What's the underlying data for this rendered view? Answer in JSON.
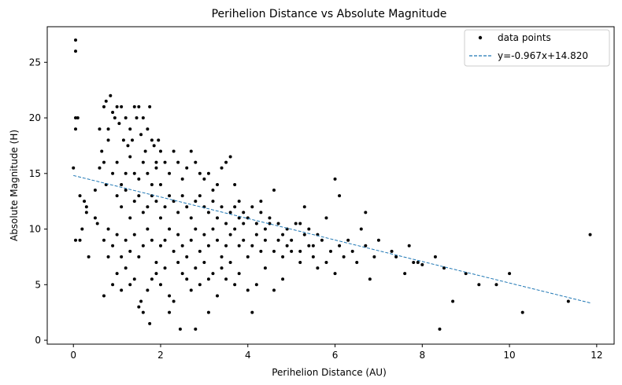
{
  "chart_data": {
    "type": "scatter",
    "title": "Perihelion Distance vs Absolute Magnitude",
    "xlabel": "Perihelion Distance (AU)",
    "ylabel": "Absolute Magnitude (H)",
    "xlim": [
      -0.6,
      12.4
    ],
    "ylim": [
      -0.35,
      28.2
    ],
    "xticks": [
      0,
      2,
      4,
      6,
      8,
      10,
      12
    ],
    "yticks": [
      0,
      5,
      10,
      15,
      20,
      25
    ],
    "grid": false,
    "legend_position": "top-right",
    "colors": {
      "points": "#000000",
      "fit": "#1f77b4",
      "axes": "#000000",
      "legend_border": "#cccccc"
    },
    "series": [
      {
        "name": "data points",
        "kind": "scatter",
        "points": [
          [
            0.05,
            27
          ],
          [
            0.05,
            26
          ],
          [
            0.05,
            20
          ],
          [
            0.1,
            20
          ],
          [
            0.05,
            19
          ],
          [
            0.0,
            15.5
          ],
          [
            0.15,
            13
          ],
          [
            0.3,
            12
          ],
          [
            0.3,
            11.5
          ],
          [
            0.25,
            12.5
          ],
          [
            0.05,
            9
          ],
          [
            0.15,
            9
          ],
          [
            0.2,
            10
          ],
          [
            0.35,
            7.5
          ],
          [
            0.5,
            13.5
          ],
          [
            0.5,
            11
          ],
          [
            0.55,
            10.5
          ],
          [
            0.6,
            19
          ],
          [
            0.65,
            17
          ],
          [
            0.6,
            15.5
          ],
          [
            0.7,
            16
          ],
          [
            0.75,
            14
          ],
          [
            0.7,
            21
          ],
          [
            0.75,
            21.5
          ],
          [
            0.8,
            19
          ],
          [
            0.8,
            18
          ],
          [
            0.85,
            22
          ],
          [
            0.9,
            20.5
          ],
          [
            0.95,
            20
          ],
          [
            1.0,
            21
          ],
          [
            1.05,
            19.5
          ],
          [
            1.1,
            21
          ],
          [
            1.15,
            18
          ],
          [
            1.2,
            20
          ],
          [
            1.25,
            17.5
          ],
          [
            1.3,
            19
          ],
          [
            1.35,
            18
          ],
          [
            1.4,
            21
          ],
          [
            1.45,
            20
          ],
          [
            1.5,
            21
          ],
          [
            1.55,
            18.5
          ],
          [
            1.6,
            20
          ],
          [
            1.65,
            17
          ],
          [
            1.7,
            19
          ],
          [
            1.75,
            21
          ],
          [
            1.8,
            18
          ],
          [
            1.85,
            17.5
          ],
          [
            1.9,
            16
          ],
          [
            1.95,
            18
          ],
          [
            2.0,
            17
          ],
          [
            0.9,
            15
          ],
          [
            1.0,
            16
          ],
          [
            1.1,
            14
          ],
          [
            1.2,
            15
          ],
          [
            1.3,
            16.5
          ],
          [
            1.4,
            15
          ],
          [
            1.5,
            14.5
          ],
          [
            1.6,
            16
          ],
          [
            1.7,
            15
          ],
          [
            1.8,
            14
          ],
          [
            1.9,
            15.5
          ],
          [
            2.0,
            14
          ],
          [
            2.1,
            16
          ],
          [
            2.2,
            15
          ],
          [
            2.3,
            17
          ],
          [
            2.4,
            16
          ],
          [
            2.5,
            14.5
          ],
          [
            2.6,
            15.5
          ],
          [
            2.7,
            17
          ],
          [
            2.8,
            16
          ],
          [
            2.9,
            15
          ],
          [
            3.0,
            14.5
          ],
          [
            3.1,
            15
          ],
          [
            3.2,
            13.5
          ],
          [
            3.3,
            14
          ],
          [
            3.4,
            15.5
          ],
          [
            3.5,
            16
          ],
          [
            3.6,
            16.5
          ],
          [
            3.7,
            14
          ],
          [
            3.8,
            12.5
          ],
          [
            1.0,
            13
          ],
          [
            1.1,
            12
          ],
          [
            1.2,
            13.5
          ],
          [
            1.3,
            11
          ],
          [
            1.4,
            12.5
          ],
          [
            1.5,
            13
          ],
          [
            1.6,
            11.5
          ],
          [
            1.7,
            12
          ],
          [
            1.8,
            13
          ],
          [
            1.9,
            12.5
          ],
          [
            2.0,
            11
          ],
          [
            2.1,
            12
          ],
          [
            2.2,
            13
          ],
          [
            2.3,
            12.5
          ],
          [
            2.4,
            11.5
          ],
          [
            2.5,
            13
          ],
          [
            2.6,
            12
          ],
          [
            2.7,
            11
          ],
          [
            2.8,
            12.5
          ],
          [
            2.9,
            13
          ],
          [
            3.0,
            12
          ],
          [
            3.1,
            11.5
          ],
          [
            3.2,
            12.5
          ],
          [
            3.3,
            11
          ],
          [
            3.4,
            12
          ],
          [
            3.5,
            10.5
          ],
          [
            3.6,
            11.5
          ],
          [
            3.7,
            12
          ],
          [
            3.8,
            11
          ],
          [
            3.9,
            10.5
          ],
          [
            4.0,
            11
          ],
          [
            4.1,
            12
          ],
          [
            4.2,
            10.5
          ],
          [
            4.3,
            11.5
          ],
          [
            4.4,
            10
          ],
          [
            4.5,
            11
          ],
          [
            4.6,
            13.5
          ],
          [
            4.7,
            10.5
          ],
          [
            4.8,
            9.5
          ],
          [
            4.9,
            10
          ],
          [
            0.7,
            9
          ],
          [
            0.8,
            10
          ],
          [
            0.9,
            8.5
          ],
          [
            1.0,
            9.5
          ],
          [
            1.1,
            7.5
          ],
          [
            1.2,
            9
          ],
          [
            1.3,
            8
          ],
          [
            1.4,
            9.5
          ],
          [
            1.5,
            7.5
          ],
          [
            1.6,
            8.5
          ],
          [
            1.7,
            10
          ],
          [
            1.8,
            9
          ],
          [
            1.9,
            7
          ],
          [
            2.0,
            8.5
          ],
          [
            2.1,
            9
          ],
          [
            2.2,
            10
          ],
          [
            2.3,
            8
          ],
          [
            2.4,
            9.5
          ],
          [
            2.5,
            8.5
          ],
          [
            2.6,
            7.5
          ],
          [
            2.7,
            9
          ],
          [
            2.8,
            10
          ],
          [
            2.9,
            8
          ],
          [
            3.0,
            9.5
          ],
          [
            3.1,
            8.5
          ],
          [
            3.2,
            10
          ],
          [
            3.3,
            9
          ],
          [
            3.4,
            7.5
          ],
          [
            3.5,
            8.5
          ],
          [
            3.6,
            9.5
          ],
          [
            3.7,
            10
          ],
          [
            3.8,
            8.5
          ],
          [
            3.9,
            9
          ],
          [
            4.0,
            7.5
          ],
          [
            4.1,
            8.5
          ],
          [
            4.2,
            9.5
          ],
          [
            4.3,
            8
          ],
          [
            4.4,
            9
          ],
          [
            4.5,
            10.5
          ],
          [
            4.6,
            8
          ],
          [
            4.7,
            9
          ],
          [
            4.8,
            7.5
          ],
          [
            4.9,
            8.5
          ],
          [
            5.0,
            9
          ],
          [
            5.1,
            10.5
          ],
          [
            5.2,
            8
          ],
          [
            5.3,
            9.5
          ],
          [
            5.4,
            10
          ],
          [
            5.5,
            8.5
          ],
          [
            5.6,
            9.5
          ],
          [
            0.7,
            4
          ],
          [
            0.8,
            7.5
          ],
          [
            0.9,
            5
          ],
          [
            1.0,
            6
          ],
          [
            1.1,
            4.5
          ],
          [
            1.2,
            6.5
          ],
          [
            1.3,
            5
          ],
          [
            1.4,
            5.5
          ],
          [
            1.5,
            3
          ],
          [
            1.6,
            2.5
          ],
          [
            1.7,
            4.5
          ],
          [
            1.75,
            1.5
          ],
          [
            1.8,
            5.5
          ],
          [
            1.9,
            6
          ],
          [
            2.0,
            5
          ],
          [
            2.1,
            6.5
          ],
          [
            2.2,
            4
          ],
          [
            2.3,
            3.5
          ],
          [
            2.4,
            7
          ],
          [
            2.45,
            1
          ],
          [
            2.5,
            6
          ],
          [
            2.6,
            5.5
          ],
          [
            2.7,
            4.5
          ],
          [
            2.8,
            6.5
          ],
          [
            2.9,
            5
          ],
          [
            3.0,
            7
          ],
          [
            3.1,
            5.5
          ],
          [
            3.2,
            6
          ],
          [
            3.3,
            4
          ],
          [
            3.4,
            6.5
          ],
          [
            3.5,
            5.5
          ],
          [
            3.6,
            7
          ],
          [
            3.7,
            5
          ],
          [
            3.8,
            6
          ],
          [
            4.0,
            4.5
          ],
          [
            4.1,
            2.5
          ],
          [
            4.2,
            5
          ],
          [
            4.4,
            6.5
          ],
          [
            4.6,
            4.5
          ],
          [
            4.8,
            5.5
          ],
          [
            2.8,
            1
          ],
          [
            3.1,
            2.5
          ],
          [
            2.2,
            2.5
          ],
          [
            1.55,
            3.5
          ],
          [
            5.0,
            8
          ],
          [
            5.2,
            7
          ],
          [
            5.4,
            8.5
          ],
          [
            5.5,
            7.5
          ],
          [
            5.6,
            6.5
          ],
          [
            5.7,
            9
          ],
          [
            5.8,
            7
          ],
          [
            5.9,
            8
          ],
          [
            6.0,
            6
          ],
          [
            6.1,
            8.5
          ],
          [
            6.2,
            7.5
          ],
          [
            6.3,
            9
          ],
          [
            6.4,
            8
          ],
          [
            6.5,
            7
          ],
          [
            6.6,
            10
          ],
          [
            6.7,
            8.5
          ],
          [
            6.8,
            5.5
          ],
          [
            6.9,
            7.5
          ],
          [
            7.0,
            9
          ],
          [
            7.3,
            8
          ],
          [
            7.4,
            7.5
          ],
          [
            7.6,
            6
          ],
          [
            7.7,
            8.5
          ],
          [
            7.8,
            7
          ],
          [
            7.9,
            7
          ],
          [
            8.0,
            6.8
          ],
          [
            8.3,
            7.5
          ],
          [
            8.4,
            1
          ],
          [
            8.5,
            6.5
          ],
          [
            8.7,
            3.5
          ],
          [
            9.0,
            6
          ],
          [
            9.3,
            5
          ],
          [
            9.7,
            5
          ],
          [
            10.0,
            6
          ],
          [
            10.3,
            2.5
          ],
          [
            11.35,
            3.5
          ],
          [
            11.85,
            9.5
          ],
          [
            6.0,
            14.5
          ],
          [
            6.1,
            13
          ],
          [
            6.7,
            11.5
          ],
          [
            5.3,
            12
          ],
          [
            5.2,
            10.5
          ],
          [
            4.3,
            12.5
          ],
          [
            3.9,
            11.5
          ],
          [
            5.8,
            11
          ]
        ]
      },
      {
        "name": "y=-0.967x+14.820",
        "kind": "line",
        "slope": -0.967,
        "intercept": 14.82,
        "x_range": [
          0.0,
          11.85
        ]
      }
    ]
  }
}
